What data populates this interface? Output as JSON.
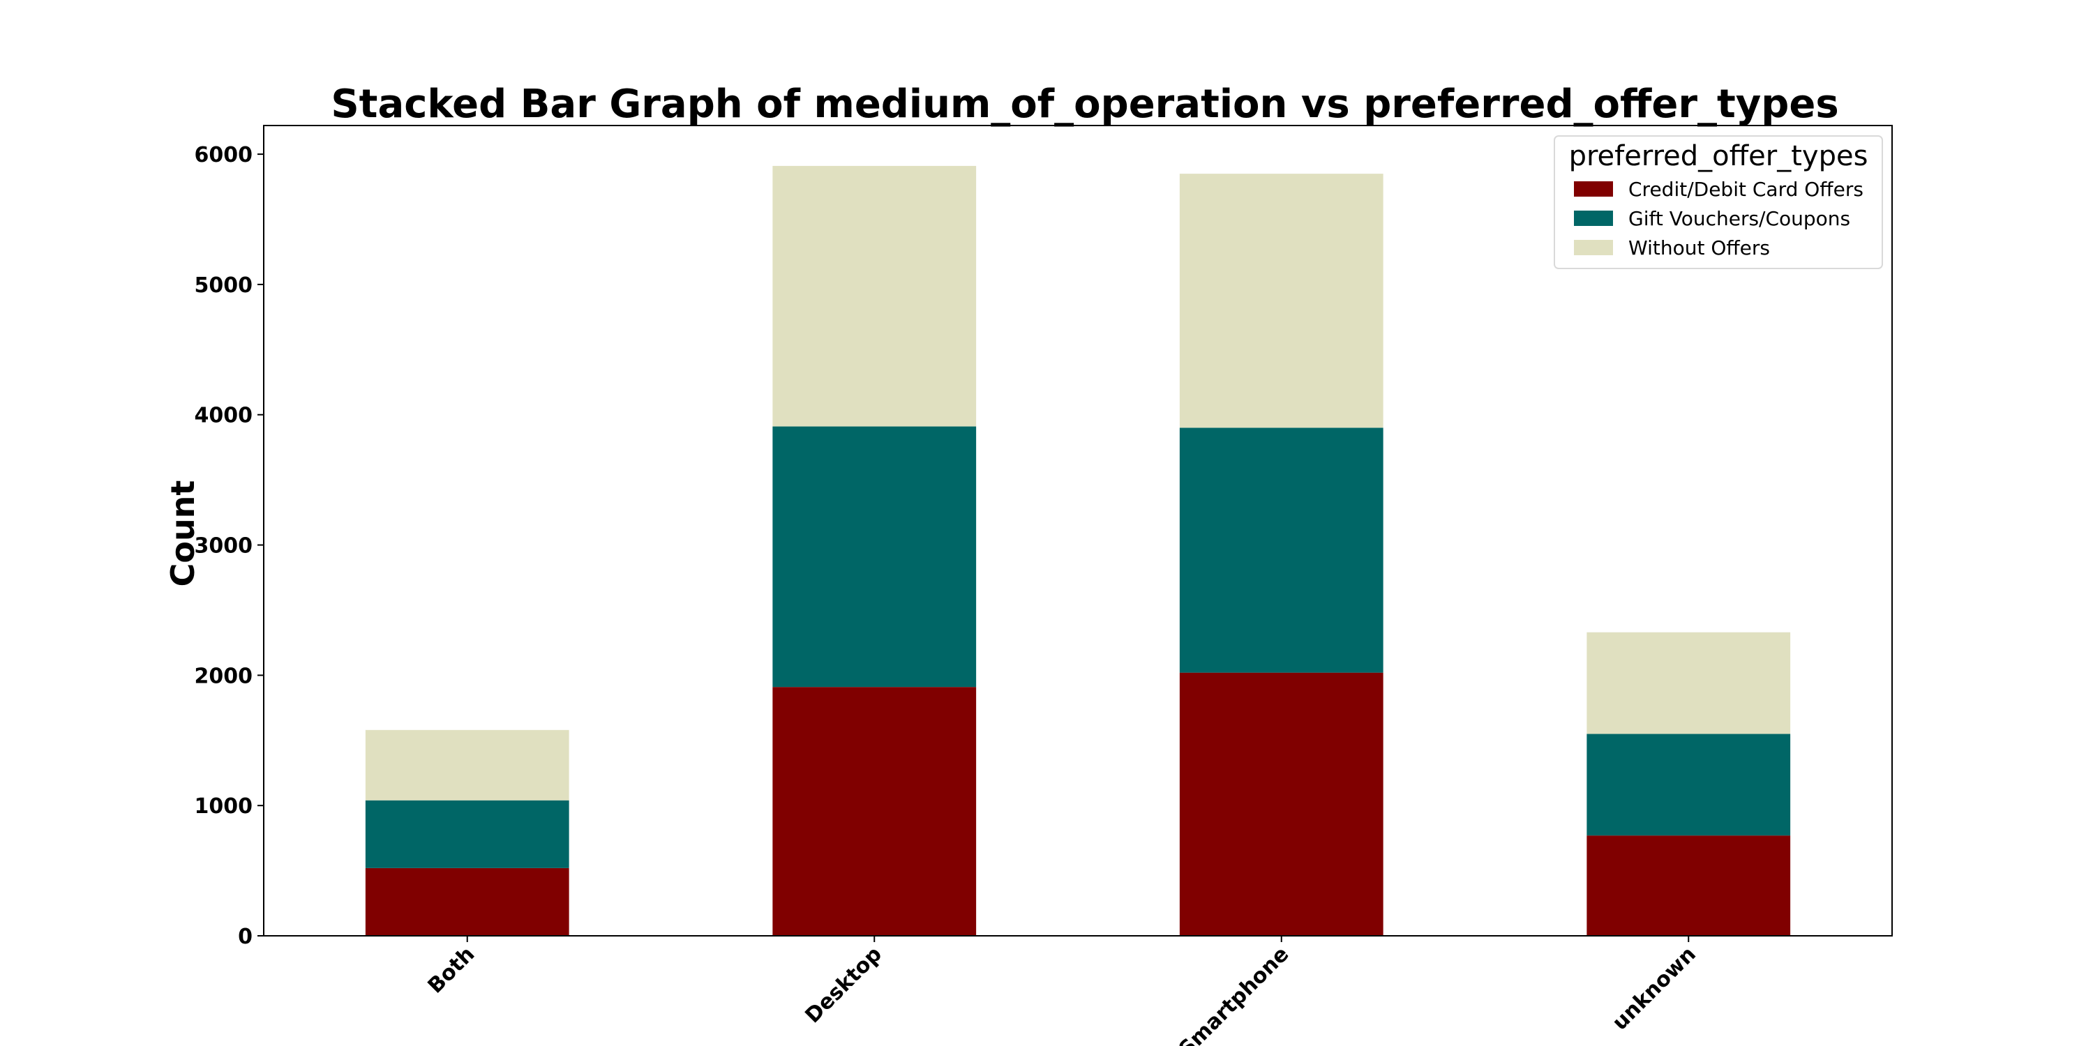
{
  "chart_data": {
    "type": "bar",
    "stacked": true,
    "title": "Stacked Bar Graph of medium_of_operation vs preferred_offer_types",
    "xlabel": "",
    "ylabel": "Count",
    "categories": [
      "Both",
      "Desktop",
      "Smartphone",
      "unknown"
    ],
    "series": [
      {
        "name": "Credit/Debit Card Offers",
        "color": "#800000",
        "values": [
          520,
          1910,
          2020,
          770
        ]
      },
      {
        "name": "Gift Vouchers/Coupons",
        "color": "#006666",
        "values": [
          520,
          2000,
          1880,
          780
        ]
      },
      {
        "name": "Without Offers",
        "color": "#e0e0c0",
        "values": [
          540,
          2000,
          1950,
          780
        ]
      }
    ],
    "ylim": [
      0,
      6220
    ],
    "yticks": [
      0,
      1000,
      2000,
      3000,
      4000,
      5000,
      6000
    ],
    "legend": {
      "title": "preferred_offer_types",
      "placement": "top-right"
    },
    "grid": false
  }
}
